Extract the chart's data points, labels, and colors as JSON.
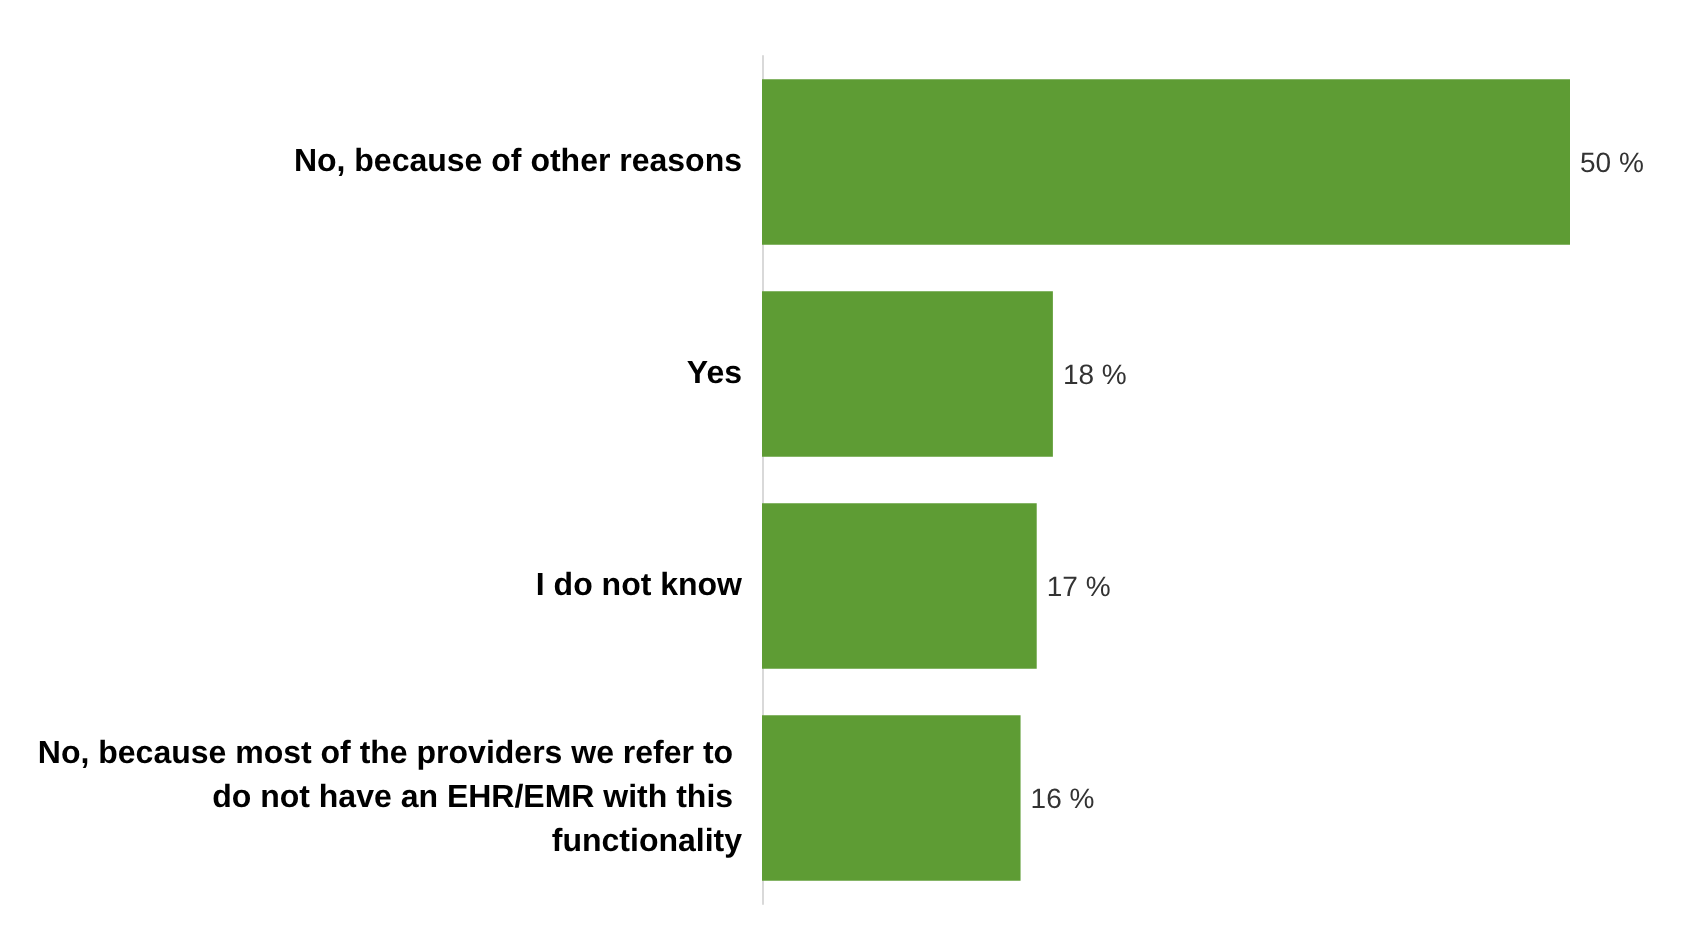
{
  "chart_data": {
    "type": "bar",
    "orientation": "horizontal",
    "categories": [
      "No, because of other reasons",
      "Yes",
      "I do not know",
      "No, because most of the providers we refer to do not have an EHR/EMR with this functionality"
    ],
    "values": [
      50,
      18,
      17,
      16
    ],
    "value_labels": [
      "50 %",
      "18 %",
      "17 %",
      "16 %"
    ],
    "color": "#5e9c34",
    "grid": false
  }
}
